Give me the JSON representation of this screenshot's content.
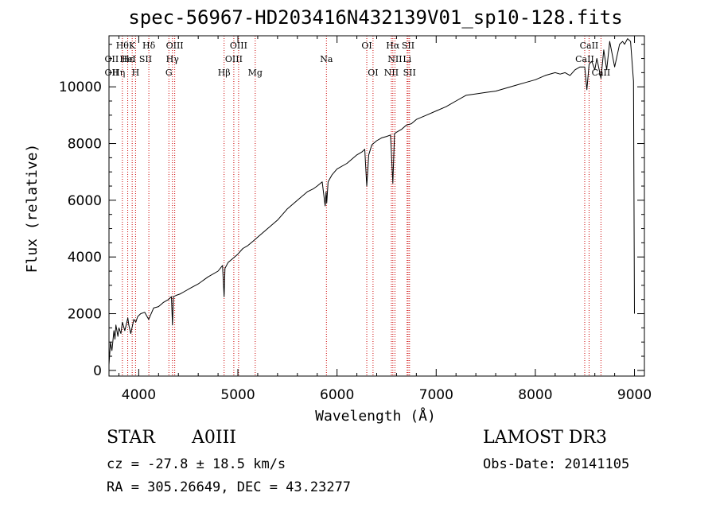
{
  "chart_data": {
    "type": "line",
    "title": "spec-56967-HD203416N432139V01_sp10-128.fits",
    "xlabel": "Wavelength (Å)",
    "ylabel": "Flux (relative)",
    "xlim": [
      3700,
      9100
    ],
    "ylim": [
      -200,
      11800
    ],
    "xticks": [
      4000,
      5000,
      6000,
      7000,
      8000,
      9000
    ],
    "yticks": [
      0,
      2000,
      4000,
      6000,
      8000,
      10000
    ],
    "line_color": "#000000",
    "marker_color": "#cc0000",
    "series": [
      {
        "name": "flux",
        "x": [
          3700,
          3715,
          3730,
          3750,
          3760,
          3770,
          3790,
          3800,
          3820,
          3835,
          3860,
          3890,
          3900,
          3920,
          3950,
          3970,
          3990,
          4020,
          4060,
          4100,
          4150,
          4200,
          4250,
          4300,
          4330,
          4340,
          4350,
          4380,
          4420,
          4470,
          4520,
          4600,
          4700,
          4800,
          4845,
          4861,
          4870,
          4900,
          4950,
          5000,
          5050,
          5100,
          5168,
          5200,
          5300,
          5400,
          5500,
          5600,
          5700,
          5760,
          5800,
          5850,
          5880,
          5890,
          5896,
          5910,
          5950,
          6000,
          6100,
          6200,
          6250,
          6280,
          6300,
          6320,
          6350,
          6400,
          6450,
          6500,
          6540,
          6563,
          6580,
          6600,
          6650,
          6700,
          6750,
          6800,
          6900,
          7000,
          7100,
          7200,
          7300,
          7400,
          7500,
          7600,
          7700,
          7800,
          7900,
          8000,
          8100,
          8200,
          8250,
          8300,
          8350,
          8400,
          8450,
          8498,
          8520,
          8542,
          8570,
          8600,
          8620,
          8662,
          8690,
          8720,
          8750,
          8800,
          8850,
          8880,
          8900,
          8930,
          8960,
          8990,
          9000
        ],
        "y": [
          200,
          1000,
          700,
          1400,
          1100,
          1600,
          1200,
          1500,
          1300,
          1700,
          1400,
          1850,
          1600,
          1300,
          1800,
          1700,
          1900,
          2000,
          2050,
          1800,
          2200,
          2250,
          2400,
          2500,
          2600,
          1600,
          2600,
          2650,
          2700,
          2800,
          2900,
          3050,
          3300,
          3500,
          3700,
          2600,
          3600,
          3800,
          3950,
          4100,
          4300,
          4400,
          4600,
          4700,
          5000,
          5300,
          5700,
          6000,
          6300,
          6400,
          6500,
          6650,
          5800,
          6300,
          5900,
          6650,
          6900,
          7100,
          7300,
          7600,
          7700,
          7800,
          6500,
          7600,
          7950,
          8100,
          8200,
          8250,
          8300,
          6600,
          8350,
          8400,
          8500,
          8650,
          8700,
          8850,
          9000,
          9150,
          9300,
          9500,
          9700,
          9750,
          9800,
          9850,
          9950,
          10050,
          10150,
          10250,
          10400,
          10500,
          10450,
          10500,
          10400,
          10600,
          10700,
          10700,
          9900,
          10800,
          10900,
          10600,
          11000,
          10300,
          11300,
          10600,
          11600,
          10700,
          11500,
          11600,
          11500,
          11700,
          11600,
          10200,
          2000
        ]
      }
    ],
    "line_markers": [
      {
        "wavelength": 3835,
        "label": "Hθ",
        "row": 0
      },
      {
        "wavelength": 3889,
        "label": "Hε",
        "row": 1
      },
      {
        "wavelength": 3934,
        "label": "K",
        "row": 0
      },
      {
        "wavelength": 3968,
        "label": "H",
        "row": 2
      },
      {
        "wavelength": 4102,
        "label": "Hδ",
        "row": 0
      },
      {
        "wavelength": 4340,
        "label": "Hγ",
        "row": 1
      },
      {
        "wavelength": 4304,
        "label": "G",
        "row": 2
      },
      {
        "wavelength": 4363,
        "label": "OIII",
        "row": 0
      },
      {
        "wavelength": 4861,
        "label": "Hβ",
        "row": 2
      },
      {
        "wavelength": 4959,
        "label": "OIII",
        "row": 1
      },
      {
        "wavelength": 5007,
        "label": "OIII",
        "row": 0
      },
      {
        "wavelength": 5175,
        "label": "Mg",
        "row": 2
      },
      {
        "wavelength": 5893,
        "label": "Na",
        "row": 1
      },
      {
        "wavelength": 6300,
        "label": "OI",
        "row": 0
      },
      {
        "wavelength": 6363,
        "label": "OI",
        "row": 2
      },
      {
        "wavelength": 6548,
        "label": "NII",
        "row": 2
      },
      {
        "wavelength": 6563,
        "label": "Hα",
        "row": 0
      },
      {
        "wavelength": 6584,
        "label": "NII",
        "row": 1
      },
      {
        "wavelength": 6707,
        "label": "Li",
        "row": 1
      },
      {
        "wavelength": 6717,
        "label": "SII",
        "row": 0
      },
      {
        "wavelength": 6731,
        "label": "SII",
        "row": 2
      },
      {
        "wavelength": 8498,
        "label": "CaII",
        "row": 1
      },
      {
        "wavelength": 8542,
        "label": "CaII",
        "row": 0
      },
      {
        "wavelength": 8662,
        "label": "CaII",
        "row": 2
      }
    ],
    "extra_labels": [
      {
        "wavelength": 3727,
        "label": "OII",
        "row": 1
      },
      {
        "wavelength": 3727,
        "label": "OII",
        "row": 2
      },
      {
        "wavelength": 3797,
        "label": "Hη",
        "row": 2
      },
      {
        "wavelength": 3889,
        "label": "HeI",
        "row": 1
      },
      {
        "wavelength": 4069,
        "label": "SII",
        "row": 1
      }
    ]
  },
  "info": {
    "object_class": "STAR",
    "subclass": "A0III",
    "survey": "LAMOST DR3",
    "redshift": "cz = -27.8 ± 18.5 km/s",
    "obs_date": "Obs-Date: 20141105",
    "coords": "RA = 305.26649, DEC =  43.23277"
  }
}
